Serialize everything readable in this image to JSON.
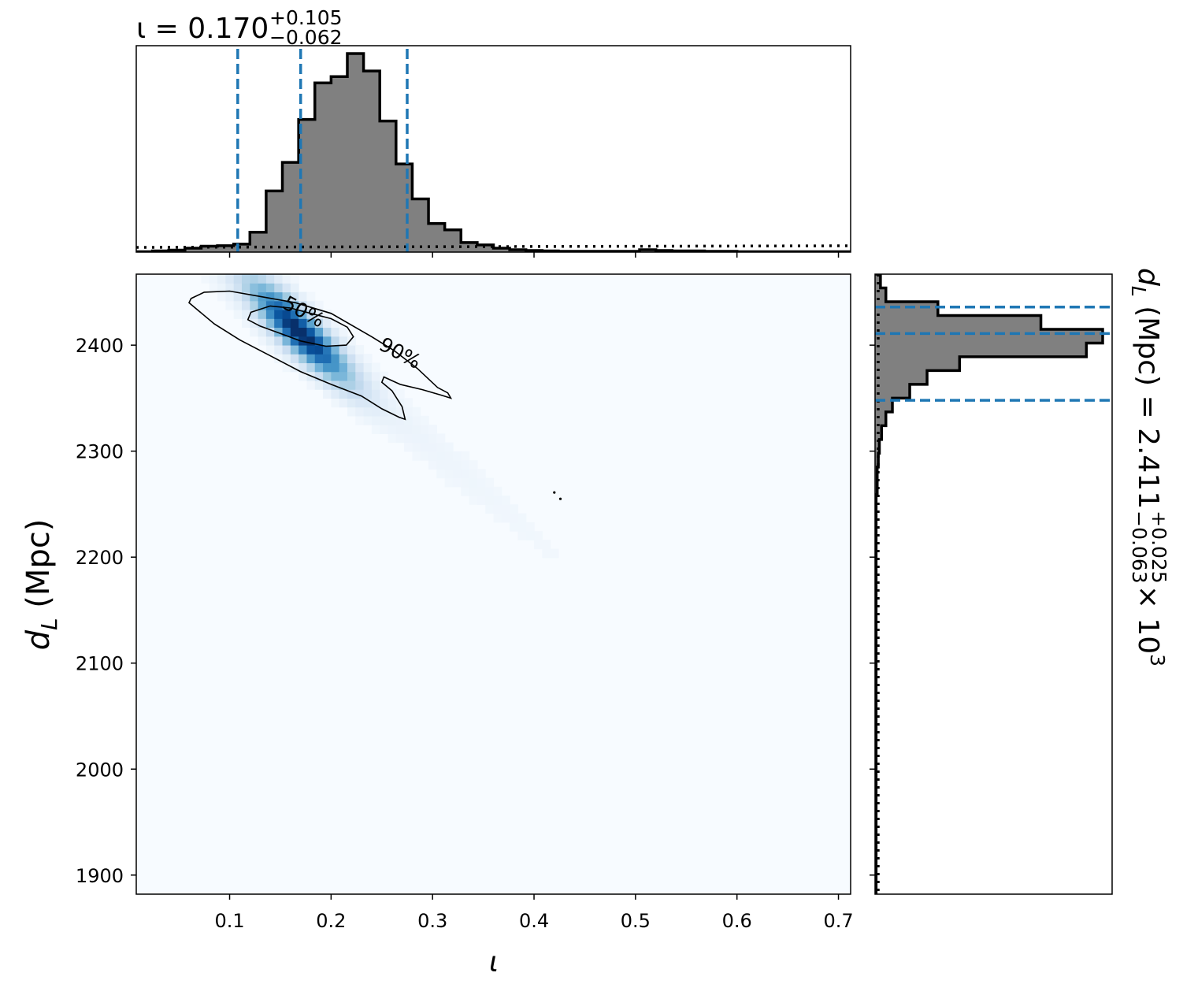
{
  "chart_data": [
    {
      "panel": "top-marginal",
      "type": "histogram",
      "title_prefix": "ι = 0.170",
      "title_sup": "+0.105",
      "title_sub": "−0.062",
      "xlim": [
        0.008,
        0.712
      ],
      "bin_width": 0.016,
      "bin_start": 0.008,
      "counts": [
        0.5,
        1.5,
        2.5,
        5,
        7.5,
        8,
        10,
        25,
        77,
        113,
        167,
        213,
        221,
        250,
        228,
        165,
        111,
        67,
        36,
        28,
        12,
        9,
        5,
        3,
        2,
        1.5,
        1,
        1,
        1,
        1,
        1,
        3,
        2,
        1.5,
        1.5,
        1,
        1,
        0.5,
        0.5,
        0.5,
        0.5,
        0.5,
        0.5,
        0.5
      ],
      "quantile_lines": [
        0.108,
        0.17,
        0.275
      ],
      "prior_dotted_level": 6,
      "line_color": "#1f77b4",
      "fill_color": "#808080"
    },
    {
      "panel": "joint",
      "type": "heatmap",
      "xlabel": "ι",
      "ylabel": "d_L (Mpc)",
      "xlim": [
        0.008,
        0.712
      ],
      "ylim": [
        1882,
        2467
      ],
      "xticks": [
        0.1,
        0.2,
        0.3,
        0.4,
        0.5,
        0.6,
        0.7
      ],
      "xtick_labels": [
        "0.1",
        "0.2",
        "0.3",
        "0.4",
        "0.5",
        "0.6",
        "0.7"
      ],
      "yticks": [
        1900,
        2000,
        2100,
        2200,
        2300,
        2400
      ],
      "ytick_labels": [
        "1900",
        "2000",
        "2100",
        "2200",
        "2300",
        "2400"
      ],
      "density_peak": {
        "x": 0.17,
        "y": 2412
      },
      "contours": [
        {
          "label": "50%",
          "points": [
            [
              0.121,
              2431
            ],
            [
              0.14,
              2437
            ],
            [
              0.16,
              2435
            ],
            [
              0.18,
              2430
            ],
            [
              0.2,
              2425
            ],
            [
              0.216,
              2417
            ],
            [
              0.222,
              2408
            ],
            [
              0.215,
              2400
            ],
            [
              0.195,
              2399
            ],
            [
              0.17,
              2404
            ],
            [
              0.15,
              2411
            ],
            [
              0.13,
              2418
            ],
            [
              0.118,
              2424
            ]
          ]
        },
        {
          "label": "90%",
          "points": [
            [
              0.062,
              2444
            ],
            [
              0.075,
              2450
            ],
            [
              0.1,
              2451
            ],
            [
              0.13,
              2446
            ],
            [
              0.165,
              2440
            ],
            [
              0.2,
              2430
            ],
            [
              0.24,
              2408
            ],
            [
              0.262,
              2395
            ],
            [
              0.285,
              2378
            ],
            [
              0.305,
              2360
            ],
            [
              0.315,
              2355
            ],
            [
              0.318,
              2350
            ],
            [
              0.308,
              2353
            ],
            [
              0.29,
              2358
            ],
            [
              0.268,
              2363
            ],
            [
              0.252,
              2370
            ],
            [
              0.25,
              2365
            ],
            [
              0.26,
              2357
            ],
            [
              0.27,
              2342
            ],
            [
              0.273,
              2330
            ],
            [
              0.267,
              2332
            ],
            [
              0.25,
              2340
            ],
            [
              0.23,
              2352
            ],
            [
              0.2,
              2363
            ],
            [
              0.17,
              2375
            ],
            [
              0.14,
              2390
            ],
            [
              0.11,
              2405
            ],
            [
              0.085,
              2420
            ],
            [
              0.07,
              2432
            ],
            [
              0.06,
              2440
            ]
          ]
        }
      ],
      "colormap": "Blues"
    },
    {
      "panel": "right-marginal",
      "type": "histogram",
      "orientation": "horizontal",
      "label_prefix": "d",
      "label_sub": "L",
      "label_unit": " (Mpc) = 2.411",
      "label_sup": "+0.025",
      "label_subscript": "−0.063",
      "label_suffix": " × 10",
      "label_exp": "3",
      "ylim": [
        1882,
        2467
      ],
      "bin_width": 13,
      "bin_edges_top": 2467,
      "counts": [
        5,
        10,
        58,
        153,
        210,
        195,
        78,
        48,
        32,
        16,
        10,
        6,
        4,
        3,
        2,
        2,
        1,
        1,
        1,
        1,
        1,
        1,
        1,
        1,
        1,
        1,
        1,
        1,
        1,
        1,
        1,
        1,
        1,
        1,
        1,
        1,
        1,
        1,
        1,
        1,
        1,
        1,
        1,
        1,
        1
      ],
      "quantile_lines": [
        2348,
        2411,
        2436
      ],
      "prior_dotted_level": 4
    }
  ]
}
